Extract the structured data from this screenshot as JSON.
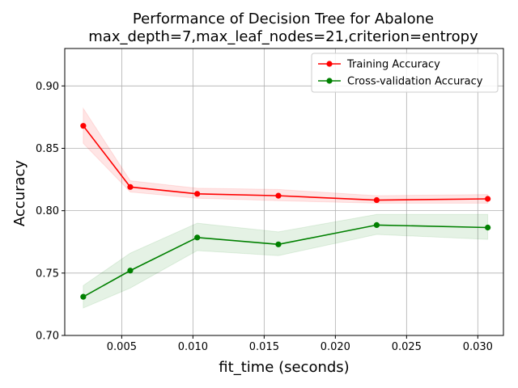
{
  "chart_data": {
    "type": "line",
    "title": "Performance of Decision Tree for Abalone",
    "subtitle": "max_depth=7,max_leaf_nodes=21,criterion=entropy",
    "xlabel": "fit_time (seconds)",
    "ylabel": "Accuracy",
    "xlim": [
      0.001,
      0.0318
    ],
    "ylim": [
      0.7,
      0.93
    ],
    "xticks": [
      0.005,
      0.01,
      0.015,
      0.02,
      0.025,
      0.03
    ],
    "xtick_labels": [
      "0.005",
      "0.010",
      "0.015",
      "0.020",
      "0.025",
      "0.030"
    ],
    "yticks": [
      0.7,
      0.75,
      0.8,
      0.85,
      0.9
    ],
    "ytick_labels": [
      "0.70",
      "0.75",
      "0.80",
      "0.85",
      "0.90"
    ],
    "grid": true,
    "legend_position": "top-right",
    "series": [
      {
        "name": "Training Accuracy",
        "color": "#ff0000",
        "band_color": "#ff0000",
        "x": [
          0.0023,
          0.0056,
          0.0103,
          0.016,
          0.0229,
          0.0307
        ],
        "values": [
          0.868,
          0.819,
          0.8135,
          0.812,
          0.8085,
          0.8095
        ],
        "band_low": [
          0.854,
          0.815,
          0.81,
          0.808,
          0.806,
          0.806
        ],
        "band_high": [
          0.882,
          0.824,
          0.818,
          0.817,
          0.812,
          0.813
        ]
      },
      {
        "name": "Cross-validation Accuracy",
        "color": "#008000",
        "band_color": "#008000",
        "x": [
          0.0023,
          0.0056,
          0.0103,
          0.016,
          0.0229,
          0.0307
        ],
        "values": [
          0.731,
          0.752,
          0.7785,
          0.773,
          0.7885,
          0.7865
        ],
        "band_low": [
          0.722,
          0.738,
          0.768,
          0.764,
          0.781,
          0.777
        ],
        "band_high": [
          0.74,
          0.766,
          0.79,
          0.783,
          0.797,
          0.797
        ]
      }
    ]
  }
}
